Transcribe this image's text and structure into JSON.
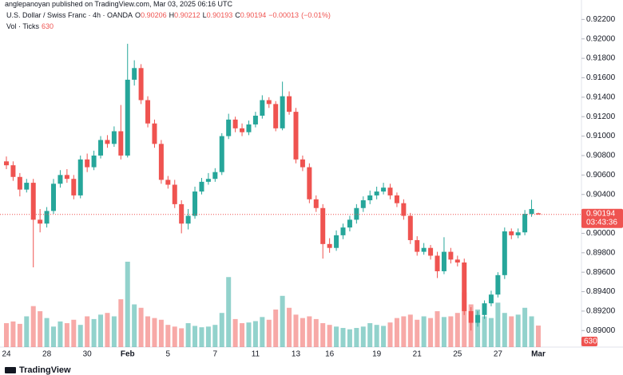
{
  "header": {
    "publisher": "anglepanoyan published on TradingView.com, Mar 03, 2025 06:16 UTC",
    "brand": "TradingView"
  },
  "chart_data": {
    "type": "candlestick",
    "title": "U.S. Dollar / Swiss Franc · 4h · OANDA",
    "legend": {
      "ohlc": [
        {
          "key": "O",
          "value": 0.90206
        },
        {
          "key": "H",
          "value": 0.90212
        },
        {
          "key": "L",
          "value": 0.90193
        },
        {
          "key": "C",
          "value": 0.90194
        }
      ],
      "change": {
        "value": -0.00013,
        "label": "−0.00013"
      },
      "change_pct": {
        "value": -0.01,
        "label": "(−0.01%)"
      }
    },
    "volume_label": "Vol · Ticks",
    "volume_last": 630,
    "countdown": "03:43:36",
    "colors": {
      "up": "#26a69a",
      "down": "#ef5350"
    },
    "grid": false,
    "categories": [
      "24",
      null,
      null,
      null,
      null,
      null,
      "28",
      null,
      null,
      null,
      null,
      null,
      "30",
      null,
      null,
      null,
      null,
      null,
      "Feb",
      null,
      null,
      null,
      null,
      null,
      "5",
      null,
      null,
      null,
      null,
      null,
      null,
      "7",
      null,
      null,
      null,
      null,
      null,
      "11",
      null,
      null,
      null,
      null,
      null,
      "13",
      null,
      null,
      null,
      null,
      "16",
      null,
      null,
      null,
      null,
      null,
      null,
      "19",
      null,
      null,
      null,
      null,
      null,
      "21",
      null,
      null,
      null,
      null,
      null,
      "25",
      null,
      null,
      null,
      null,
      null,
      "27",
      null,
      null,
      null,
      null,
      null,
      "Mar"
    ],
    "open": [
      0.9074,
      0.907,
      0.9058,
      0.9045,
      0.9052,
      0.9014,
      0.901,
      0.9023,
      0.9051,
      0.906,
      0.9056,
      0.9039,
      0.9076,
      0.9068,
      0.908,
      0.9096,
      0.9092,
      0.9105,
      0.908,
      0.9158,
      0.917,
      0.9137,
      0.9113,
      0.9092,
      0.9055,
      0.905,
      0.903,
      0.901,
      0.9018,
      0.9043,
      0.9053,
      0.9056,
      0.9063,
      0.91,
      0.9117,
      0.9108,
      0.9104,
      0.9112,
      0.9121,
      0.9137,
      0.9133,
      0.9108,
      0.9141,
      0.9125,
      0.9076,
      0.9068,
      0.9035,
      0.9026,
      0.8989,
      0.8985,
      0.8998,
      0.9006,
      0.9014,
      0.9026,
      0.9034,
      0.9039,
      0.9043,
      0.9047,
      0.9039,
      0.9031,
      0.9018,
      0.8993,
      0.8981,
      0.8985,
      0.8977,
      0.8961,
      0.8981,
      0.8973,
      0.897,
      0.892,
      0.8908,
      0.8916,
      0.8928,
      0.8937,
      0.8957,
      0.9002,
      0.8998,
      0.9001,
      0.902,
      0.90206
    ],
    "high": [
      0.9079,
      0.9074,
      0.9062,
      0.9056,
      0.9056,
      0.9025,
      0.9027,
      0.9056,
      0.9065,
      0.9066,
      0.906,
      0.908,
      0.9082,
      0.9085,
      0.91,
      0.9101,
      0.911,
      0.9132,
      0.9195,
      0.9178,
      0.9174,
      0.9141,
      0.9117,
      0.9096,
      0.9059,
      0.9055,
      0.9034,
      0.9025,
      0.9048,
      0.9057,
      0.9062,
      0.9067,
      0.9103,
      0.9123,
      0.912,
      0.9113,
      0.9116,
      0.9125,
      0.9142,
      0.914,
      0.9136,
      0.9156,
      0.9146,
      0.9129,
      0.908,
      0.9072,
      0.9039,
      0.903,
      0.8995,
      0.9003,
      0.901,
      0.9018,
      0.903,
      0.9038,
      0.9044,
      0.9048,
      0.9052,
      0.9051,
      0.9042,
      0.9035,
      0.9021,
      0.8997,
      0.899,
      0.8988,
      0.8981,
      0.8996,
      0.8985,
      0.8977,
      0.8974,
      0.8924,
      0.892,
      0.8931,
      0.8941,
      0.896,
      0.9006,
      0.9005,
      0.9005,
      0.9024,
      0.90345,
      0.90212
    ],
    "low": [
      0.9066,
      0.9054,
      0.9038,
      0.9042,
      0.8965,
      0.9001,
      0.9006,
      0.902,
      0.9047,
      0.9052,
      0.9035,
      0.9036,
      0.9063,
      0.9065,
      0.9077,
      0.9088,
      0.9089,
      0.9076,
      0.9078,
      0.9152,
      0.9133,
      0.9109,
      0.9088,
      0.9051,
      0.9046,
      0.9026,
      0.9,
      0.9004,
      0.9015,
      0.904,
      0.905,
      0.9053,
      0.906,
      0.9097,
      0.9104,
      0.91,
      0.9101,
      0.9109,
      0.9118,
      0.9129,
      0.9105,
      0.9106,
      0.9122,
      0.9072,
      0.9064,
      0.9031,
      0.9022,
      0.8974,
      0.898,
      0.8982,
      0.8994,
      0.9002,
      0.901,
      0.9022,
      0.903,
      0.9035,
      0.904,
      0.9035,
      0.9027,
      0.9014,
      0.8989,
      0.8977,
      0.8978,
      0.8973,
      0.8954,
      0.8958,
      0.8969,
      0.8966,
      0.8916,
      0.89,
      0.8904,
      0.8912,
      0.8925,
      0.8934,
      0.8953,
      0.8994,
      0.8995,
      0.8998,
      0.9017,
      0.90193
    ],
    "close": [
      0.907,
      0.9058,
      0.9045,
      0.9052,
      0.9014,
      0.901,
      0.9023,
      0.9051,
      0.906,
      0.9056,
      0.9039,
      0.9076,
      0.9068,
      0.908,
      0.9096,
      0.9092,
      0.9105,
      0.908,
      0.9158,
      0.917,
      0.9137,
      0.9113,
      0.9092,
      0.9055,
      0.905,
      0.903,
      0.901,
      0.9018,
      0.9043,
      0.9053,
      0.9056,
      0.9063,
      0.91,
      0.9117,
      0.9108,
      0.9104,
      0.9112,
      0.9121,
      0.9137,
      0.9133,
      0.9108,
      0.9141,
      0.9125,
      0.9076,
      0.9068,
      0.9035,
      0.9026,
      0.8989,
      0.8985,
      0.8998,
      0.9006,
      0.9014,
      0.9026,
      0.9034,
      0.9039,
      0.9043,
      0.9047,
      0.9039,
      0.9031,
      0.9018,
      0.8993,
      0.8981,
      0.8985,
      0.8977,
      0.8961,
      0.8981,
      0.8973,
      0.897,
      0.892,
      0.8908,
      0.8916,
      0.8928,
      0.8937,
      0.8957,
      0.9002,
      0.8998,
      0.9001,
      0.902,
      0.9025,
      0.90194
    ],
    "volume": [
      700,
      750,
      680,
      900,
      1200,
      1050,
      850,
      600,
      750,
      700,
      800,
      650,
      900,
      820,
      950,
      1000,
      900,
      1400,
      2500,
      1250,
      1150,
      900,
      850,
      800,
      650,
      600,
      550,
      700,
      620,
      580,
      600,
      650,
      1000,
      2050,
      820,
      700,
      720,
      760,
      880,
      800,
      1100,
      1500,
      1150,
      950,
      850,
      900,
      820,
      700,
      650,
      600,
      560,
      520,
      560,
      600,
      700,
      650,
      620,
      720,
      850,
      900,
      950,
      800,
      900,
      850,
      1050,
      880,
      900,
      1000,
      1600,
      1250,
      1100,
      900,
      850,
      1300,
      1000,
      900,
      950,
      1150,
      900,
      630
    ],
    "ylim": [
      0.8883,
      0.924
    ],
    "yticks": [
      {
        "value": 0.89,
        "label": "0.89000"
      },
      {
        "value": 0.892,
        "label": "0.89200"
      },
      {
        "value": 0.894,
        "label": "0.89400"
      },
      {
        "value": 0.896,
        "label": "0.89600"
      },
      {
        "value": 0.898,
        "label": "0.89800"
      },
      {
        "value": 0.9,
        "label": "0.90000"
      },
      {
        "value": 0.902,
        "label": "0.90200"
      },
      {
        "value": 0.904,
        "label": "0.90400"
      },
      {
        "value": 0.906,
        "label": "0.90600"
      },
      {
        "value": 0.908,
        "label": "0.90800"
      },
      {
        "value": 0.91,
        "label": "0.91000"
      },
      {
        "value": 0.912,
        "label": "0.91200"
      },
      {
        "value": 0.914,
        "label": "0.91400"
      },
      {
        "value": 0.916,
        "label": "0.91600"
      },
      {
        "value": 0.918,
        "label": "0.91800"
      },
      {
        "value": 0.92,
        "label": "0.92000"
      },
      {
        "value": 0.922,
        "label": "0.92200"
      }
    ]
  }
}
